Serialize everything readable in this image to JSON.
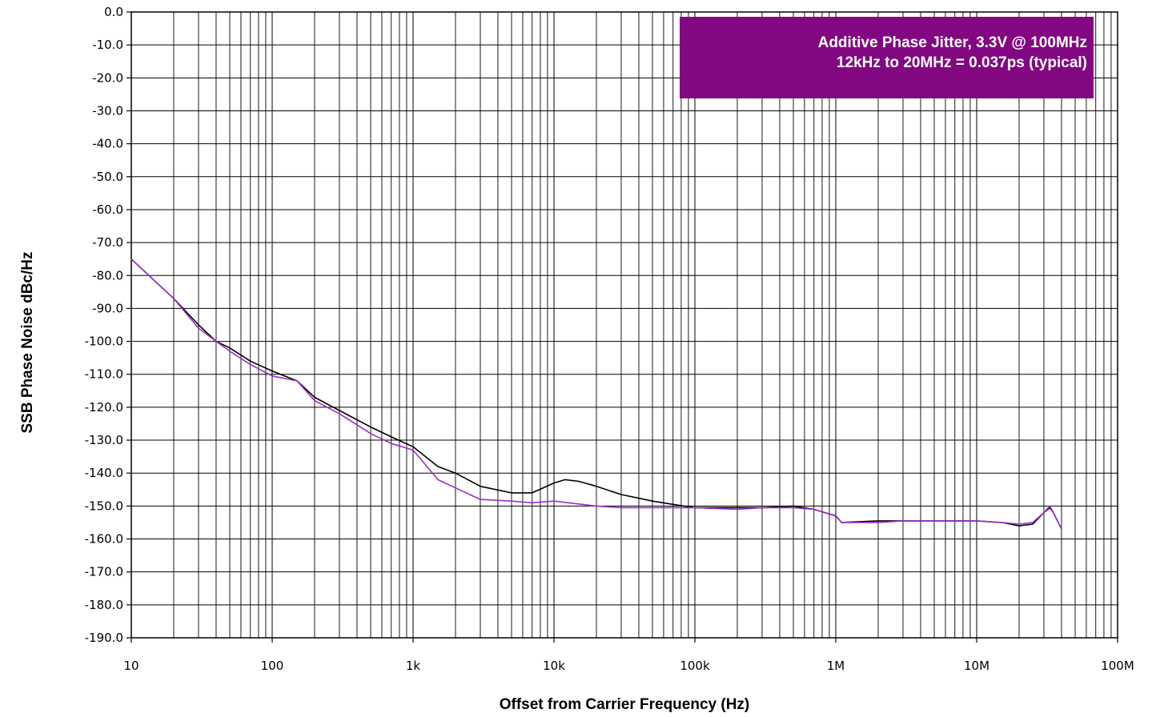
{
  "chart_data": {
    "type": "line",
    "xscale": "log",
    "xlim": [
      10,
      100000000
    ],
    "ylim": [
      -190,
      0
    ],
    "grid": true,
    "xlabel": "Offset from Carrier Frequency (Hz)",
    "ylabel": "SSB Phase Noise  dBc/Hz",
    "x_ticks": [
      {
        "value": 10,
        "label": "10"
      },
      {
        "value": 100,
        "label": "100"
      },
      {
        "value": 1000,
        "label": "1k"
      },
      {
        "value": 10000,
        "label": "10k"
      },
      {
        "value": 100000,
        "label": "100k"
      },
      {
        "value": 1000000,
        "label": "1M"
      },
      {
        "value": 10000000,
        "label": "10M"
      },
      {
        "value": 100000000,
        "label": "100M"
      }
    ],
    "y_ticks": [
      {
        "value": 0,
        "label": "0.0"
      },
      {
        "value": -10,
        "label": "-10.0"
      },
      {
        "value": -20,
        "label": "-20.0"
      },
      {
        "value": -30,
        "label": "-30.0"
      },
      {
        "value": -40,
        "label": "-40.0"
      },
      {
        "value": -50,
        "label": "-50.0"
      },
      {
        "value": -60,
        "label": "-60.0"
      },
      {
        "value": -70,
        "label": "-70.0"
      },
      {
        "value": -80,
        "label": "-80.0"
      },
      {
        "value": -90,
        "label": "-90.0"
      },
      {
        "value": -100,
        "label": "-100.0"
      },
      {
        "value": -110,
        "label": "-110.0"
      },
      {
        "value": -120,
        "label": "-120.0"
      },
      {
        "value": -130,
        "label": "-130.0"
      },
      {
        "value": -140,
        "label": "-140.0"
      },
      {
        "value": -150,
        "label": "-150.0"
      },
      {
        "value": -160,
        "label": "-160.0"
      },
      {
        "value": -170,
        "label": "-170.0"
      },
      {
        "value": -180,
        "label": "-180.0"
      },
      {
        "value": -190,
        "label": "-190.0"
      }
    ],
    "annotation": {
      "line1": "Additive Phase Jitter, 3.3V @ 100MHz",
      "line2": "12kHz to 20MHz = 0.037ps (typical)",
      "background": "#820882",
      "text_color": "#ffffff"
    },
    "series": [
      {
        "color": "#000000",
        "x": [
          10,
          20,
          30,
          40,
          50,
          70,
          100,
          150,
          200,
          300,
          500,
          700,
          1000,
          1500,
          2000,
          3000,
          5000,
          7000,
          10000,
          12000,
          15000,
          20000,
          30000,
          50000,
          70000,
          100000,
          200000,
          300000,
          500000,
          700000,
          1000000,
          1100000,
          2000000,
          3000000,
          5000000,
          7000000,
          10000000,
          15000000,
          20000000,
          25000000,
          30000000,
          33000000,
          35000000,
          40000000
        ],
        "y": [
          -75,
          -87,
          -95,
          -100,
          -102,
          -106,
          -109,
          -112,
          -117,
          -121,
          -126,
          -129,
          -132,
          -138,
          -140,
          -144,
          -146,
          -146,
          -143,
          -142,
          -142.5,
          -144,
          -146.5,
          -148.5,
          -149.5,
          -150.5,
          -150.5,
          -150.5,
          -150,
          -151,
          -153,
          -155,
          -154.5,
          -154.5,
          -154.5,
          -154.5,
          -154.5,
          -155,
          -156,
          -155.5,
          -152,
          -150.5,
          -152,
          -157
        ]
      },
      {
        "color": "#9a2ec8",
        "x": [
          10,
          20,
          30,
          40,
          50,
          70,
          100,
          150,
          200,
          300,
          500,
          700,
          1000,
          1500,
          2000,
          3000,
          5000,
          7000,
          10000,
          20000,
          30000,
          50000,
          70000,
          100000,
          200000,
          300000,
          500000,
          700000,
          1000000,
          1100000,
          2000000,
          3000000,
          5000000,
          7000000,
          10000000,
          15000000,
          20000000,
          25000000,
          30000000,
          33000000,
          35000000,
          40000000
        ],
        "y": [
          -75,
          -87,
          -96,
          -100,
          -103,
          -107,
          -110.5,
          -112,
          -118,
          -122,
          -128,
          -131,
          -133,
          -142,
          -144.5,
          -148,
          -148.5,
          -149,
          -148.5,
          -150,
          -150.5,
          -150.5,
          -150.5,
          -150.5,
          -151,
          -150.5,
          -150.5,
          -151,
          -153,
          -155,
          -155,
          -154.5,
          -154.5,
          -154.5,
          -154.5,
          -155,
          -155.5,
          -155,
          -152,
          -150,
          -152,
          -157
        ]
      }
    ]
  }
}
